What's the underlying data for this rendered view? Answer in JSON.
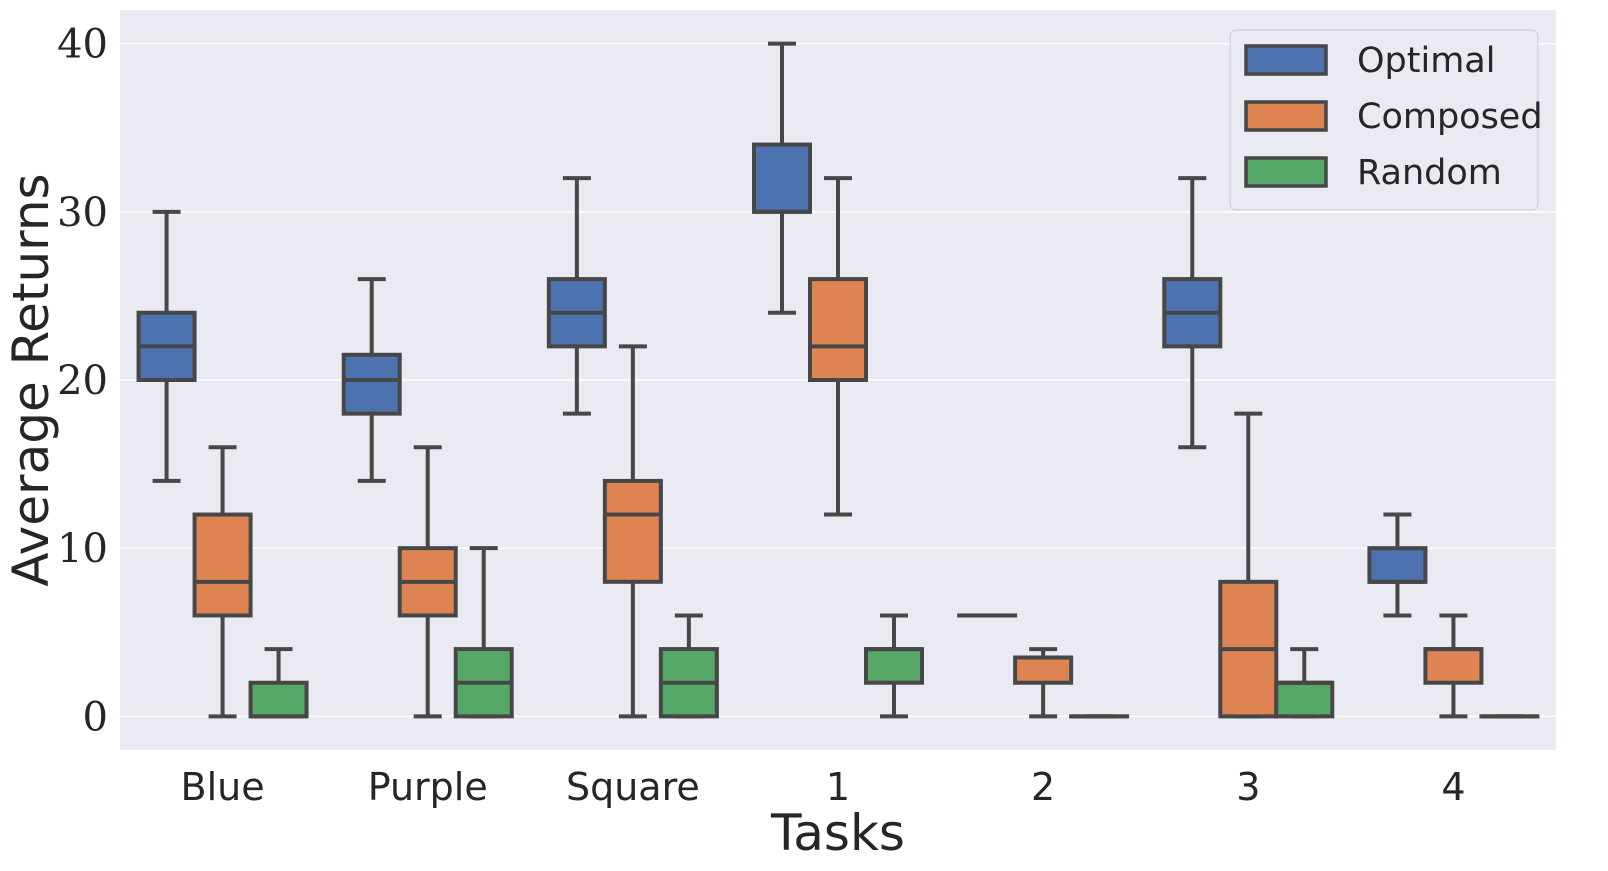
{
  "chart_data": {
    "type": "box",
    "xlabel": "Tasks",
    "ylabel": "Average Returns",
    "ylim": [
      -2,
      42
    ],
    "yticks": [
      0,
      10,
      20,
      30,
      40
    ],
    "categories": [
      "Blue",
      "Purple",
      "Square",
      "1",
      "2",
      "3",
      "4"
    ],
    "grid": true,
    "legend_position": "top-right",
    "series": [
      {
        "name": "Optimal",
        "color": "#4c72b0",
        "boxes": [
          {
            "min": 14,
            "q1": 20,
            "median": 22,
            "q3": 24,
            "max": 30
          },
          {
            "min": 14,
            "q1": 18,
            "median": 20,
            "q3": 21.5,
            "max": 26
          },
          {
            "min": 18,
            "q1": 22,
            "median": 24,
            "q3": 26,
            "max": 32
          },
          {
            "min": 24,
            "q1": 30,
            "median": 30,
            "q3": 34,
            "max": 40
          },
          {
            "min": 6,
            "q1": 6,
            "median": 6,
            "q3": 6,
            "max": 6
          },
          {
            "min": 16,
            "q1": 22,
            "median": 24,
            "q3": 26,
            "max": 32
          },
          {
            "min": 6,
            "q1": 8,
            "median": 8,
            "q3": 10,
            "max": 12
          }
        ]
      },
      {
        "name": "Composed",
        "color": "#dd8452",
        "boxes": [
          {
            "min": 0,
            "q1": 6,
            "median": 8,
            "q3": 12,
            "max": 16
          },
          {
            "min": 0,
            "q1": 6,
            "median": 8,
            "q3": 10,
            "max": 16
          },
          {
            "min": 0,
            "q1": 8,
            "median": 12,
            "q3": 14,
            "max": 22
          },
          {
            "min": 12,
            "q1": 20,
            "median": 22,
            "q3": 26,
            "max": 32
          },
          {
            "min": 0,
            "q1": 2,
            "median": 3.5,
            "q3": 3.5,
            "max": 4
          },
          {
            "min": 0,
            "q1": 0,
            "median": 4,
            "q3": 8,
            "max": 18
          },
          {
            "min": 0,
            "q1": 2,
            "median": 4,
            "q3": 4,
            "max": 6
          }
        ]
      },
      {
        "name": "Random",
        "color": "#55a868",
        "boxes": [
          {
            "min": 0,
            "q1": 0,
            "median": 0,
            "q3": 2,
            "max": 4
          },
          {
            "min": 0,
            "q1": 0,
            "median": 2,
            "q3": 4,
            "max": 10
          },
          {
            "min": 0,
            "q1": 0,
            "median": 2,
            "q3": 4,
            "max": 6
          },
          {
            "min": 0,
            "q1": 2,
            "median": 4,
            "q3": 4,
            "max": 6
          },
          {
            "min": 0,
            "q1": 0,
            "median": 0,
            "q3": 0,
            "max": 0
          },
          {
            "min": 0,
            "q1": 0,
            "median": 2,
            "q3": 2,
            "max": 4
          },
          {
            "min": 0,
            "q1": 0,
            "median": 0,
            "q3": 0,
            "max": 0
          }
        ]
      }
    ],
    "style": {
      "background": "#eaeaf2",
      "grid_color": "#ffffff",
      "box_edge_color": "#474747"
    }
  }
}
